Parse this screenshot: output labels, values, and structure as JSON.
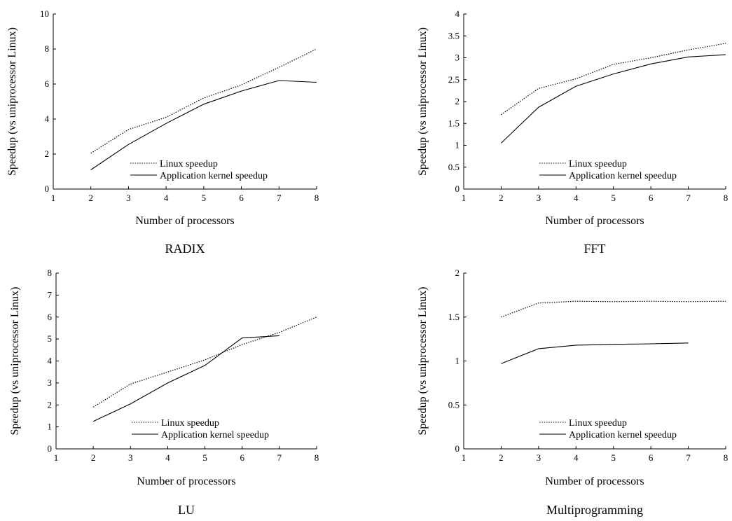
{
  "chart_data": [
    {
      "type": "line",
      "title": "RADIX",
      "xlabel": "Number of processors",
      "ylabel": "Speedup (vs uniprocessor Linux)",
      "xlim": [
        1,
        8
      ],
      "ylim": [
        0,
        10
      ],
      "xticks": [
        1,
        2,
        3,
        4,
        5,
        6,
        7,
        8
      ],
      "yticks": [
        0,
        2,
        4,
        6,
        8,
        10
      ],
      "legend_position": "bottom-right",
      "grid": false,
      "series": [
        {
          "name": "Linux speedup",
          "style": "dotted",
          "x": [
            2,
            3,
            4,
            5,
            6,
            7,
            8
          ],
          "values": [
            2.05,
            3.4,
            4.1,
            5.2,
            5.95,
            6.95,
            8.0
          ]
        },
        {
          "name": "Application kernel speedup",
          "style": "solid",
          "x": [
            2,
            3,
            4,
            5,
            6,
            7,
            8
          ],
          "values": [
            1.1,
            2.55,
            3.75,
            4.85,
            5.6,
            6.2,
            6.1
          ]
        }
      ]
    },
    {
      "type": "line",
      "title": "FFT",
      "xlabel": "Number of processors",
      "ylabel": "Speedup (vs uniprocessor Linux)",
      "xlim": [
        1,
        8
      ],
      "ylim": [
        0,
        4
      ],
      "xticks": [
        1,
        2,
        3,
        4,
        5,
        6,
        7,
        8
      ],
      "yticks": [
        0,
        0.5,
        1,
        1.5,
        2,
        2.5,
        3,
        3.5,
        4
      ],
      "legend_position": "bottom-right",
      "grid": false,
      "series": [
        {
          "name": "Linux speedup",
          "style": "dotted",
          "x": [
            2,
            3,
            4,
            5,
            6,
            7,
            8
          ],
          "values": [
            1.7,
            2.3,
            2.52,
            2.85,
            3.0,
            3.18,
            3.33
          ]
        },
        {
          "name": "Application kernel speedup",
          "style": "solid",
          "x": [
            2,
            3,
            4,
            5,
            6,
            7,
            8
          ],
          "values": [
            1.05,
            1.87,
            2.35,
            2.63,
            2.86,
            3.02,
            3.07
          ]
        }
      ]
    },
    {
      "type": "line",
      "title": "LU",
      "xlabel": "Number of processors",
      "ylabel": "Speedup (vs uniprocessor Linux)",
      "xlim": [
        1,
        8
      ],
      "ylim": [
        0,
        8
      ],
      "xticks": [
        1,
        2,
        3,
        4,
        5,
        6,
        7,
        8
      ],
      "yticks": [
        0,
        1,
        2,
        3,
        4,
        5,
        6,
        7,
        8
      ],
      "legend_position": "bottom-right",
      "grid": false,
      "series": [
        {
          "name": "Linux speedup",
          "style": "dotted",
          "x": [
            2,
            3,
            4,
            5,
            6,
            7,
            8
          ],
          "values": [
            1.9,
            2.95,
            3.5,
            4.05,
            4.75,
            5.3,
            6.0
          ]
        },
        {
          "name": "Application kernel speedup",
          "style": "solid",
          "x": [
            2,
            3,
            4,
            5,
            6,
            7
          ],
          "values": [
            1.25,
            2.05,
            3.0,
            3.8,
            5.05,
            5.15
          ]
        }
      ]
    },
    {
      "type": "line",
      "title": "Multiprogramming",
      "xlabel": "Number of processors",
      "ylabel": "Speedup (vs uniprocessor Linux)",
      "xlim": [
        1,
        8
      ],
      "ylim": [
        0,
        2
      ],
      "xticks": [
        1,
        2,
        3,
        4,
        5,
        6,
        7,
        8
      ],
      "yticks": [
        0,
        0.5,
        1,
        1.5,
        2
      ],
      "legend_position": "bottom-right",
      "grid": false,
      "series": [
        {
          "name": "Linux speedup",
          "style": "dotted",
          "x": [
            2,
            3,
            4,
            5,
            6,
            7,
            8
          ],
          "values": [
            1.5,
            1.66,
            1.68,
            1.675,
            1.68,
            1.675,
            1.68
          ]
        },
        {
          "name": "Application kernel speedup",
          "style": "solid",
          "x": [
            2,
            3,
            4,
            5,
            6,
            7
          ],
          "values": [
            0.97,
            1.14,
            1.18,
            1.19,
            1.195,
            1.205
          ]
        }
      ]
    }
  ]
}
